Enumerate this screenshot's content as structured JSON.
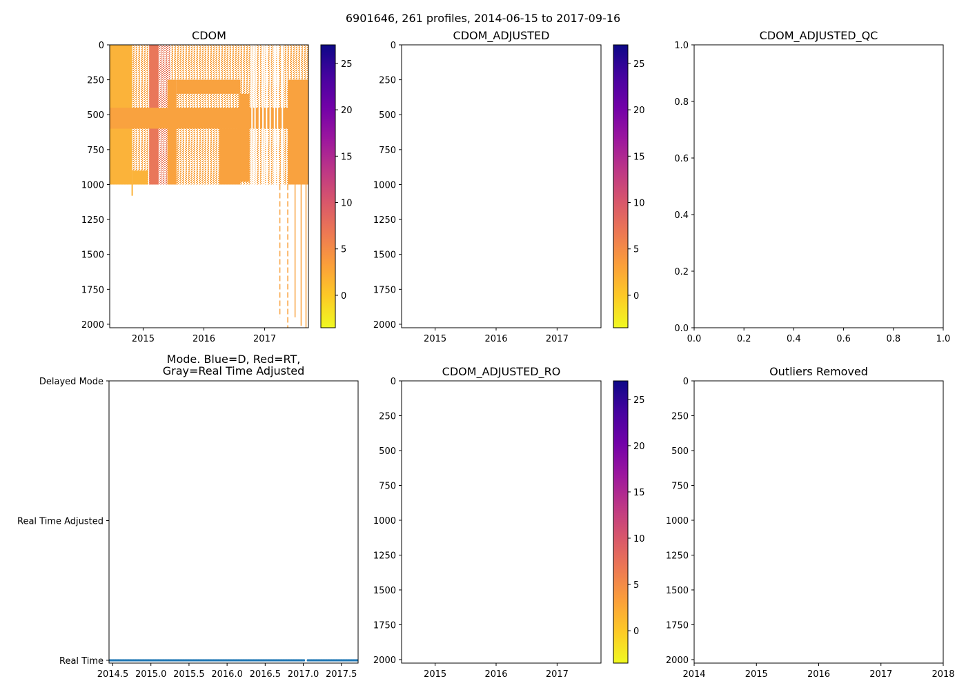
{
  "suptitle": "6901646, 261 profiles, 2014-06-15 to 2017-09-16",
  "colors": {
    "colormap": [
      "#f0f921",
      "#fdca26",
      "#fb9f3a",
      "#ed7953",
      "#d8576b",
      "#bd3786",
      "#9c179e",
      "#7201a8",
      "#46039f",
      "#0d0887"
    ],
    "cdom_fill_main": "#f9a23f",
    "cdom_fill_light": "#fbb33a",
    "cdom_fill_red": "#e9775a",
    "mode_dots": "#1f77b4"
  },
  "chart_data": [
    {
      "type": "heatmap",
      "id": "cdom",
      "title": "CDOM",
      "x_ticks": [
        "2015",
        "2016",
        "2017"
      ],
      "x_tick_values": [
        2015,
        2016,
        2017
      ],
      "xlim": [
        2014.45,
        2017.72
      ],
      "y_ticks": [
        "0",
        "250",
        "500",
        "750",
        "1000",
        "1250",
        "1500",
        "1750",
        "2000"
      ],
      "y_tick_values": [
        0,
        250,
        500,
        750,
        1000,
        1250,
        1500,
        1750,
        2000
      ],
      "ylim": [
        2025,
        0
      ],
      "ylabel": "",
      "colorbar": {
        "ticks": [
          "0",
          "5",
          "10",
          "15",
          "20",
          "25"
        ],
        "tick_values": [
          0,
          5,
          10,
          15,
          20,
          25
        ],
        "range": [
          -3.5,
          27
        ]
      },
      "blocks": [
        {
          "x0": 2014.45,
          "x1": 2014.82,
          "y0": 0,
          "y1": 1000,
          "shade": "light"
        },
        {
          "x0": 2014.82,
          "x1": 2015.08,
          "y0": 900,
          "y1": 1000,
          "shade": "light"
        },
        {
          "x0": 2015.1,
          "x1": 2015.25,
          "y0": 0,
          "y1": 1000,
          "shade": "red"
        },
        {
          "x0": 2015.4,
          "x1": 2015.55,
          "y0": 250,
          "y1": 1000,
          "shade": "main"
        },
        {
          "x0": 2015.55,
          "x1": 2016.6,
          "y0": 250,
          "y1": 350,
          "shade": "main"
        },
        {
          "x0": 2016.58,
          "x1": 2016.75,
          "y0": 350,
          "y1": 980,
          "shade": "main"
        },
        {
          "x0": 2017.38,
          "x1": 2017.72,
          "y0": 250,
          "y1": 1000,
          "shade": "main"
        },
        {
          "x0": 2014.45,
          "x1": 2017.72,
          "y0": 450,
          "y1": 600,
          "shade": "main"
        },
        {
          "x0": 2016.25,
          "x1": 2016.6,
          "y0": 600,
          "y1": 1000,
          "shade": "main"
        }
      ],
      "deep_profiles": [
        {
          "x": 2017.25,
          "y1": 1950,
          "dashed": true
        },
        {
          "x": 2017.38,
          "y1": 2025,
          "dashed": true
        },
        {
          "x": 2017.5,
          "y1": 1950,
          "dashed": false
        },
        {
          "x": 2017.6,
          "y1": 2010,
          "dashed": false
        },
        {
          "x": 2017.68,
          "y1": 2025,
          "dashed": false
        }
      ]
    },
    {
      "type": "heatmap",
      "id": "cdom_adjusted",
      "title": "CDOM_ADJUSTED",
      "x_ticks": [
        "2015",
        "2016",
        "2017"
      ],
      "x_tick_values": [
        2015,
        2016,
        2017
      ],
      "xlim": [
        2014.45,
        2017.72
      ],
      "y_ticks": [
        "0",
        "250",
        "500",
        "750",
        "1000",
        "1250",
        "1500",
        "1750",
        "2000"
      ],
      "y_tick_values": [
        0,
        250,
        500,
        750,
        1000,
        1250,
        1500,
        1750,
        2000
      ],
      "ylim": [
        2025,
        0
      ],
      "colorbar": {
        "ticks": [
          "0",
          "5",
          "10",
          "15",
          "20",
          "25"
        ],
        "tick_values": [
          0,
          5,
          10,
          15,
          20,
          25
        ],
        "range": [
          -3.5,
          27
        ]
      },
      "values": []
    },
    {
      "type": "scatter",
      "id": "cdom_adjusted_qc",
      "title": "CDOM_ADJUSTED_QC",
      "x_ticks": [
        "0.0",
        "0.2",
        "0.4",
        "0.6",
        "0.8",
        "1.0"
      ],
      "x_tick_values": [
        0,
        0.2,
        0.4,
        0.6,
        0.8,
        1.0
      ],
      "xlim": [
        0,
        1
      ],
      "y_ticks": [
        "0.0",
        "0.2",
        "0.4",
        "0.6",
        "0.8",
        "1.0"
      ],
      "y_tick_values": [
        0,
        0.2,
        0.4,
        0.6,
        0.8,
        1.0
      ],
      "ylim": [
        0,
        1
      ],
      "values": []
    },
    {
      "type": "scatter",
      "id": "mode",
      "title_line1": "Mode. Blue=D, Red=RT,",
      "title_line2": "Gray=Real Time Adjusted",
      "x_ticks": [
        "2014.5",
        "2015.0",
        "2015.5",
        "2016.0",
        "2016.5",
        "2017.0",
        "2017.5"
      ],
      "x_tick_values": [
        2014.5,
        2015.0,
        2015.5,
        2016.0,
        2016.5,
        2017.0,
        2017.5
      ],
      "xlim": [
        2014.45,
        2017.72
      ],
      "y_ticks": [
        "Real Time",
        "Real Time Adjusted",
        "Delayed Mode"
      ],
      "y_tick_values": [
        0,
        1,
        2
      ],
      "ylim": [
        -0.02,
        2
      ],
      "series": [
        {
          "name": "Real Time",
          "y": 0,
          "x_start": 2014.46,
          "x_end": 2017.71,
          "count": 261
        }
      ]
    },
    {
      "type": "heatmap",
      "id": "cdom_adjusted_ro",
      "title": "CDOM_ADJUSTED_RO",
      "x_ticks": [
        "2015",
        "2016",
        "2017"
      ],
      "x_tick_values": [
        2015,
        2016,
        2017
      ],
      "xlim": [
        2014.45,
        2017.72
      ],
      "y_ticks": [
        "0",
        "250",
        "500",
        "750",
        "1000",
        "1250",
        "1500",
        "1750",
        "2000"
      ],
      "y_tick_values": [
        0,
        250,
        500,
        750,
        1000,
        1250,
        1500,
        1750,
        2000
      ],
      "ylim": [
        2025,
        0
      ],
      "colorbar": {
        "ticks": [
          "0",
          "5",
          "10",
          "15",
          "20",
          "25"
        ],
        "tick_values": [
          0,
          5,
          10,
          15,
          20,
          25
        ],
        "range": [
          -3.5,
          27
        ]
      },
      "values": []
    },
    {
      "type": "scatter",
      "id": "outliers_removed",
      "title": "Outliers Removed",
      "x_ticks": [
        "2014",
        "2015",
        "2016",
        "2017",
        "2018"
      ],
      "x_tick_values": [
        2014,
        2015,
        2016,
        2017,
        2018
      ],
      "xlim": [
        2014,
        2018
      ],
      "y_ticks": [
        "0",
        "250",
        "500",
        "750",
        "1000",
        "1250",
        "1500",
        "1750",
        "2000"
      ],
      "y_tick_values": [
        0,
        250,
        500,
        750,
        1000,
        1250,
        1500,
        1750,
        2000
      ],
      "ylim": [
        2025,
        0
      ],
      "values": []
    }
  ]
}
